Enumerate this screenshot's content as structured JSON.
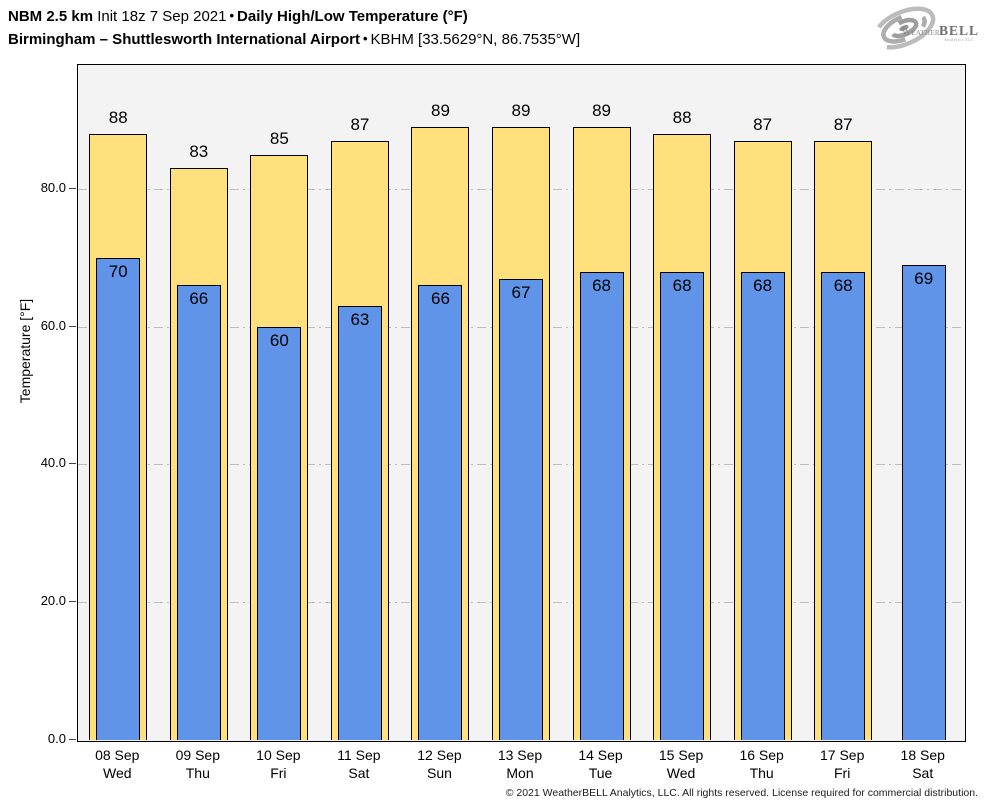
{
  "header": {
    "line1": {
      "model": "NBM 2.5 km",
      "init": "Init 18z 7 Sep 2021",
      "sep": "•",
      "title": "Daily High/Low Temperature (°F)"
    },
    "line2": {
      "station": "Birmingham – Shuttlesworth International Airport",
      "sep": "•",
      "meta": "KBHM [33.5629°N, 86.7535°W]"
    }
  },
  "logo": {
    "brand_prefix": "Weather",
    "brand_suffix": "BELL",
    "brand_sub": "Analytics LLC"
  },
  "chart_data": {
    "type": "bar",
    "title": "NBM 2.5 km Init 18z 7 Sep 2021 • Daily High/Low Temperature (°F)",
    "subtitle": "Birmingham – Shuttlesworth International Airport • KBHM [33.5629°N, 86.7535°W]",
    "categories": [
      {
        "date": "08 Sep",
        "day": "Wed"
      },
      {
        "date": "09 Sep",
        "day": "Thu"
      },
      {
        "date": "10 Sep",
        "day": "Fri"
      },
      {
        "date": "11 Sep",
        "day": "Sat"
      },
      {
        "date": "12 Sep",
        "day": "Sun"
      },
      {
        "date": "13 Sep",
        "day": "Mon"
      },
      {
        "date": "14 Sep",
        "day": "Tue"
      },
      {
        "date": "15 Sep",
        "day": "Wed"
      },
      {
        "date": "16 Sep",
        "day": "Thu"
      },
      {
        "date": "17 Sep",
        "day": "Fri"
      },
      {
        "date": "18 Sep",
        "day": "Sat"
      }
    ],
    "series": [
      {
        "name": "High",
        "color": "#ffe07d",
        "values": [
          88,
          83,
          85,
          87,
          89,
          89,
          89,
          88,
          87,
          87,
          null
        ]
      },
      {
        "name": "Low",
        "color": "#6094e8",
        "values": [
          70,
          66,
          60,
          63,
          66,
          67,
          68,
          68,
          68,
          68,
          69
        ]
      }
    ],
    "ylabel": "Temperature [°F]",
    "yticks": [
      0,
      20,
      40,
      60,
      80
    ],
    "ytick_labels": [
      "0.0",
      "20.0",
      "40.0",
      "60.0",
      "80.0"
    ],
    "ygrid": [
      20,
      40,
      60,
      80
    ],
    "ylim": [
      0,
      98
    ],
    "grid": "horizontal dash-dot",
    "legend": "none",
    "plot_bg": "#f4f3f4",
    "bar_border": "#000000"
  },
  "footer": {
    "copyright": "© 2021 WeatherBELL Analytics, LLC. All rights reserved. License required for commercial distribution."
  }
}
